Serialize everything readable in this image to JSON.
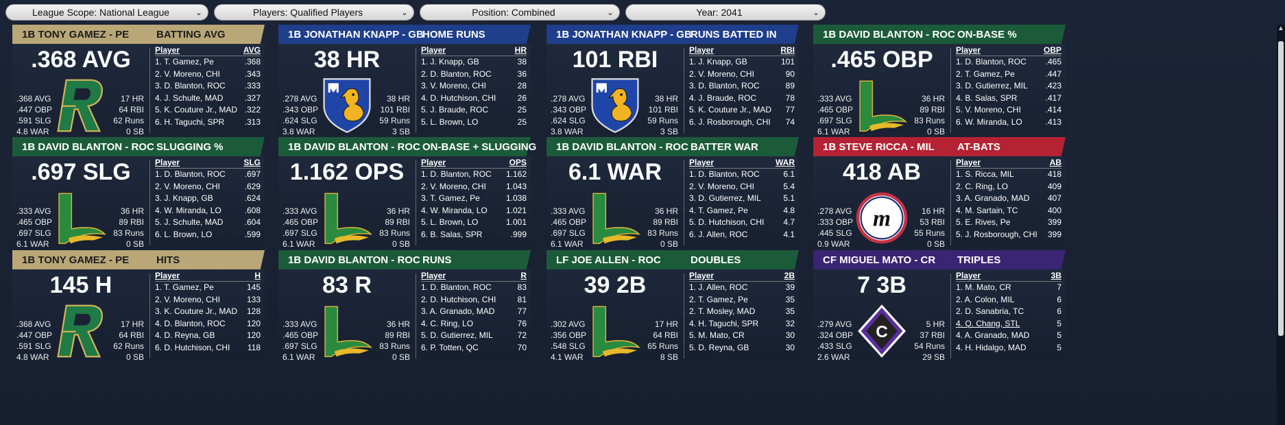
{
  "filters": [
    {
      "label": "League Scope: National League",
      "width": 302
    },
    {
      "label": "Players: Qualified Players",
      "width": 298
    },
    {
      "label": "Position: Combined",
      "width": 298
    },
    {
      "label": "Year: 2041",
      "width": 298
    }
  ],
  "colors": {
    "pe": "#b9a778",
    "gb": "#1f3e8c",
    "roc": "#1c5b3a",
    "mil": "#b52233",
    "cr": "#3a2474"
  },
  "cards": [
    {
      "team": "pe",
      "player": "1B TONY GAMEZ - PE",
      "category": "BATTING AVG",
      "big": ".368 AVG",
      "logo": "R",
      "left": [
        ".368 AVG",
        ".447 OBP",
        ".591 SLG",
        "4.8 WAR"
      ],
      "right": [
        "17 HR",
        "64 RBI",
        "62 Runs",
        "0 SB"
      ],
      "col": "AVG",
      "rows": [
        [
          "1. T. Gamez, Pe",
          ".368"
        ],
        [
          "2. V. Moreno, CHI",
          ".343"
        ],
        [
          "3. D. Blanton, ROC",
          ".333"
        ],
        [
          "4. J. Schulte, MAD",
          ".327"
        ],
        [
          "5. K. Couture Jr., MAD",
          ".322"
        ],
        [
          "6. H. Taguchi, SPR",
          ".313"
        ]
      ]
    },
    {
      "team": "gb",
      "player": "1B JONATHAN KNAPP - GB",
      "category": "HOME RUNS",
      "big": "38 HR",
      "logo": "M",
      "left": [
        ".278 AVG",
        ".343 OBP",
        ".624 SLG",
        "3.8 WAR"
      ],
      "right": [
        "38 HR",
        "101 RBI",
        "59 Runs",
        "3 SB"
      ],
      "col": "HR",
      "rows": [
        [
          "1. J. Knapp, GB",
          "38"
        ],
        [
          "2. D. Blanton, ROC",
          "36"
        ],
        [
          "3. V. Moreno, CHI",
          "28"
        ],
        [
          "4. D. Hutchison, CHI",
          "26"
        ],
        [
          "5. J. Braude, ROC",
          "25"
        ],
        [
          "5. L. Brown, LO",
          "25"
        ]
      ]
    },
    {
      "team": "gb",
      "player": "1B JONATHAN KNAPP - GB",
      "category": "RUNS BATTED IN",
      "big": "101 RBI",
      "logo": "M",
      "left": [
        ".278 AVG",
        ".343 OBP",
        ".624 SLG",
        "3.8 WAR"
      ],
      "right": [
        "38 HR",
        "101 RBI",
        "59 Runs",
        "3 SB"
      ],
      "col": "RBI",
      "rows": [
        [
          "1. J. Knapp, GB",
          "101"
        ],
        [
          "2. V. Moreno, CHI",
          "90"
        ],
        [
          "3. D. Blanton, ROC",
          "89"
        ],
        [
          "4. J. Braude, ROC",
          "78"
        ],
        [
          "5. K. Couture Jr., MAD",
          "77"
        ],
        [
          "6. J. Rosborough, CHI",
          "74"
        ]
      ]
    },
    {
      "team": "roc",
      "player": "1B DAVID BLANTON - ROC",
      "category": "ON-BASE %",
      "big": ".465 OBP",
      "logo": "L",
      "left": [
        ".333 AVG",
        ".465 OBP",
        ".697 SLG",
        "6.1 WAR"
      ],
      "right": [
        "36 HR",
        "89 RBI",
        "83 Runs",
        "0 SB"
      ],
      "col": "OBP",
      "rows": [
        [
          "1. D. Blanton, ROC",
          ".465"
        ],
        [
          "2. T. Gamez, Pe",
          ".447"
        ],
        [
          "3. D. Gutierrez, MIL",
          ".423"
        ],
        [
          "4. B. Salas, SPR",
          ".417"
        ],
        [
          "5. V. Moreno, CHI",
          ".414"
        ],
        [
          "6. W. Miranda, LO",
          ".413"
        ]
      ]
    },
    {
      "team": "roc",
      "player": "1B DAVID BLANTON - ROC",
      "category": "SLUGGING %",
      "big": ".697 SLG",
      "logo": "L",
      "left": [
        ".333 AVG",
        ".465 OBP",
        ".697 SLG",
        "6.1 WAR"
      ],
      "right": [
        "36 HR",
        "89 RBI",
        "83 Runs",
        "0 SB"
      ],
      "col": "SLG",
      "rows": [
        [
          "1. D. Blanton, ROC",
          ".697"
        ],
        [
          "2. V. Moreno, CHI",
          ".629"
        ],
        [
          "3. J. Knapp, GB",
          ".624"
        ],
        [
          "4. W. Miranda, LO",
          ".608"
        ],
        [
          "5. J. Schulte, MAD",
          ".604"
        ],
        [
          "6. L. Brown, LO",
          ".599"
        ]
      ]
    },
    {
      "team": "roc",
      "player": "1B DAVID BLANTON - ROC",
      "category": "ON-BASE + SLUGGING",
      "big": "1.162 OPS",
      "logo": "L",
      "left": [
        ".333 AVG",
        ".465 OBP",
        ".697 SLG",
        "6.1 WAR"
      ],
      "right": [
        "36 HR",
        "89 RBI",
        "83 Runs",
        "0 SB"
      ],
      "col": "OPS",
      "rows": [
        [
          "1. D. Blanton, ROC",
          "1.162"
        ],
        [
          "2. V. Moreno, CHI",
          "1.043"
        ],
        [
          "3. T. Gamez, Pe",
          "1.038"
        ],
        [
          "4. W. Miranda, LO",
          "1.021"
        ],
        [
          "5. L. Brown, LO",
          "1.001"
        ],
        [
          "6. B. Salas, SPR",
          ".999"
        ]
      ]
    },
    {
      "team": "roc",
      "player": "1B DAVID BLANTON - ROC",
      "category": "BATTER WAR",
      "big": "6.1 WAR",
      "logo": "L",
      "left": [
        ".333 AVG",
        ".465 OBP",
        ".697 SLG",
        "6.1 WAR"
      ],
      "right": [
        "36 HR",
        "89 RBI",
        "83 Runs",
        "0 SB"
      ],
      "col": "WAR",
      "rows": [
        [
          "1. D. Blanton, ROC",
          "6.1"
        ],
        [
          "2. V. Moreno, CHI",
          "5.4"
        ],
        [
          "3. D. Gutierrez, MIL",
          "5.1"
        ],
        [
          "4. T. Gamez, Pe",
          "4.8"
        ],
        [
          "5. D. Hutchison, CHI",
          "4.7"
        ],
        [
          "6. J. Allen, ROC",
          "4.1"
        ]
      ]
    },
    {
      "team": "mil",
      "player": "1B STEVE RICCA - MIL",
      "category": "AT-BATS",
      "big": "418 AB",
      "logo": "Mcirc",
      "left": [
        ".278 AVG",
        ".333 OBP",
        ".445 SLG",
        "0.9 WAR"
      ],
      "right": [
        "16 HR",
        "53 RBI",
        "55 Runs",
        "0 SB"
      ],
      "col": "AB",
      "rows": [
        [
          "1. S. Ricca, MIL",
          "418"
        ],
        [
          "2. C. Ring, LO",
          "409"
        ],
        [
          "3. A. Granado, MAD",
          "407"
        ],
        [
          "4. M. Sartain, TC",
          "400"
        ],
        [
          "5. E. Rives, Pe",
          "399"
        ],
        [
          "5. J. Rosborough, CHI",
          "399"
        ]
      ]
    },
    {
      "team": "pe",
      "player": "1B TONY GAMEZ - PE",
      "category": "HITS",
      "big": "145 H",
      "logo": "R",
      "left": [
        ".368 AVG",
        ".447 OBP",
        ".591 SLG",
        "4.8 WAR"
      ],
      "right": [
        "17 HR",
        "64 RBI",
        "62 Runs",
        "0 SB"
      ],
      "col": "H",
      "rows": [
        [
          "1. T. Gamez, Pe",
          "145"
        ],
        [
          "2. V. Moreno, CHI",
          "133"
        ],
        [
          "3. K. Couture Jr., MAD",
          "128"
        ],
        [
          "4. D. Blanton, ROC",
          "120"
        ],
        [
          "4. D. Reyna, GB",
          "120"
        ],
        [
          "6. D. Hutchison, CHI",
          "118"
        ]
      ]
    },
    {
      "team": "roc",
      "player": "1B DAVID BLANTON - ROC",
      "category": "RUNS",
      "big": "83 R",
      "logo": "L",
      "left": [
        ".333 AVG",
        ".465 OBP",
        ".697 SLG",
        "6.1 WAR"
      ],
      "right": [
        "36 HR",
        "89 RBI",
        "83 Runs",
        "0 SB"
      ],
      "col": "R",
      "rows": [
        [
          "1. D. Blanton, ROC",
          "83"
        ],
        [
          "2. D. Hutchison, CHI",
          "81"
        ],
        [
          "3. A. Granado, MAD",
          "77"
        ],
        [
          "4. C. Ring, LO",
          "76"
        ],
        [
          "5. D. Gutierrez, MIL",
          "72"
        ],
        [
          "6. P. Totten, QC",
          "70"
        ]
      ]
    },
    {
      "team": "roc",
      "player": "LF JOE ALLEN - ROC",
      "category": "DOUBLES",
      "big": "39 2B",
      "logo": "L",
      "left": [
        ".302 AVG",
        ".356 OBP",
        ".548 SLG",
        "4.1 WAR"
      ],
      "right": [
        "17 HR",
        "64 RBI",
        "65 Runs",
        "8 SB"
      ],
      "col": "2B",
      "rows": [
        [
          "1. J. Allen, ROC",
          "39"
        ],
        [
          "2. T. Gamez, Pe",
          "35"
        ],
        [
          "2. T. Mosley, MAD",
          "35"
        ],
        [
          "4. H. Taguchi, SPR",
          "32"
        ],
        [
          "5. M. Mato, CR",
          "30"
        ],
        [
          "5. D. Reyna, GB",
          "30"
        ]
      ]
    },
    {
      "team": "cr",
      "player": "CF MIGUEL MATO - CR",
      "category": "TRIPLES",
      "big": "7 3B",
      "logo": "C",
      "left": [
        ".279 AVG",
        ".324 OBP",
        ".433 SLG",
        "2.6 WAR"
      ],
      "right": [
        "5 HR",
        "37 RBI",
        "54 Runs",
        "29 SB"
      ],
      "col": "3B",
      "rows": [
        [
          "1. M. Mato, CR",
          "7"
        ],
        [
          "2. A. Colon, MIL",
          "6"
        ],
        [
          "2. D. Sanabria, TC",
          "6"
        ],
        [
          "4. Q. Chang, STL",
          "5"
        ],
        [
          "4. A. Granado, MAD",
          "5"
        ],
        [
          "4. H. Hidalgo, MAD",
          "5"
        ]
      ]
    }
  ]
}
